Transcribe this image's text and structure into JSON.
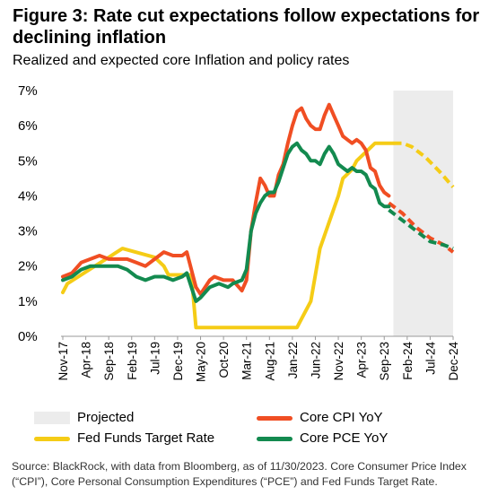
{
  "title": "Figure 3: Rate cut expectations follow expectations for declining inflation",
  "subtitle": "Realized and expected core Inflation and policy rates",
  "source": "Source: BlackRock, with data from Bloomberg, as of 11/30/2023. Core Consumer Price Index (“CPI”), Core Personal Consumption Expenditures (“PCE”) and Fed Funds Target Rate.",
  "legend": {
    "projected": "Projected",
    "fed_funds": "Fed Funds Target Rate",
    "core_cpi": "Core CPI YoY",
    "core_pce": "Core PCE YoY"
  },
  "colors": {
    "cpi": "#f04e23",
    "pce": "#138a4f",
    "fed": "#f5cc16",
    "projected": "#ececec"
  },
  "chart_data": {
    "type": "line",
    "title": "Figure 3: Rate cut expectations follow expectations for declining inflation",
    "subtitle": "Realized and expected core Inflation and policy rates",
    "xlabel": "",
    "ylabel": "",
    "ylim": [
      0,
      7
    ],
    "yticks": [
      "0%",
      "1%",
      "2%",
      "3%",
      "4%",
      "5%",
      "6%",
      "7%"
    ],
    "x_range": [
      "2017-11",
      "2024-12"
    ],
    "x_ticks": [
      "Nov-17",
      "Apr-18",
      "Sep-18",
      "Feb-19",
      "Jul-19",
      "Dec-19",
      "May-20",
      "Oct-20",
      "Mar-21",
      "Aug-21",
      "Jan-22",
      "Jun-22",
      "Nov-22",
      "Apr-23",
      "Sep-23",
      "Feb-24",
      "Jul-24",
      "Dec-24"
    ],
    "projected_region": [
      "2023-11",
      "2024-12"
    ],
    "grid": false,
    "legend_position": "bottom",
    "series": [
      {
        "name": "Core CPI YoY",
        "color": "#f04e23",
        "points": [
          [
            "2017-11",
            1.7
          ],
          [
            "2018-01",
            1.8
          ],
          [
            "2018-03",
            2.1
          ],
          [
            "2018-05",
            2.2
          ],
          [
            "2018-07",
            2.3
          ],
          [
            "2018-09",
            2.2
          ],
          [
            "2018-11",
            2.2
          ],
          [
            "2019-01",
            2.2
          ],
          [
            "2019-03",
            2.1
          ],
          [
            "2019-05",
            2.0
          ],
          [
            "2019-07",
            2.2
          ],
          [
            "2019-09",
            2.4
          ],
          [
            "2019-11",
            2.3
          ],
          [
            "2020-01",
            2.3
          ],
          [
            "2020-02",
            2.4
          ],
          [
            "2020-04",
            1.4
          ],
          [
            "2020-05",
            1.2
          ],
          [
            "2020-07",
            1.6
          ],
          [
            "2020-08",
            1.7
          ],
          [
            "2020-10",
            1.6
          ],
          [
            "2020-12",
            1.6
          ],
          [
            "2021-02",
            1.3
          ],
          [
            "2021-03",
            1.6
          ],
          [
            "2021-04",
            3.0
          ],
          [
            "2021-05",
            3.8
          ],
          [
            "2021-06",
            4.5
          ],
          [
            "2021-07",
            4.3
          ],
          [
            "2021-08",
            4.0
          ],
          [
            "2021-09",
            4.0
          ],
          [
            "2021-10",
            4.6
          ],
          [
            "2021-11",
            4.9
          ],
          [
            "2021-12",
            5.5
          ],
          [
            "2022-01",
            6.0
          ],
          [
            "2022-02",
            6.4
          ],
          [
            "2022-03",
            6.5
          ],
          [
            "2022-04",
            6.2
          ],
          [
            "2022-05",
            6.0
          ],
          [
            "2022-06",
            5.9
          ],
          [
            "2022-07",
            5.9
          ],
          [
            "2022-08",
            6.3
          ],
          [
            "2022-09",
            6.6
          ],
          [
            "2022-10",
            6.3
          ],
          [
            "2022-11",
            6.0
          ],
          [
            "2022-12",
            5.7
          ],
          [
            "2023-01",
            5.6
          ],
          [
            "2023-02",
            5.5
          ],
          [
            "2023-03",
            5.6
          ],
          [
            "2023-04",
            5.5
          ],
          [
            "2023-05",
            5.3
          ],
          [
            "2023-06",
            4.8
          ],
          [
            "2023-07",
            4.7
          ],
          [
            "2023-08",
            4.3
          ],
          [
            "2023-09",
            4.1
          ],
          [
            "2023-10",
            4.0
          ]
        ]
      },
      {
        "name": "Core CPI YoY (projected)",
        "color": "#f04e23",
        "dashed": true,
        "points": [
          [
            "2023-10",
            3.8
          ],
          [
            "2024-01",
            3.5
          ],
          [
            "2024-04",
            3.1
          ],
          [
            "2024-07",
            2.8
          ],
          [
            "2024-10",
            2.6
          ],
          [
            "2024-12",
            2.4
          ]
        ]
      },
      {
        "name": "Core PCE YoY",
        "color": "#138a4f",
        "points": [
          [
            "2017-11",
            1.6
          ],
          [
            "2018-01",
            1.7
          ],
          [
            "2018-03",
            1.9
          ],
          [
            "2018-05",
            2.0
          ],
          [
            "2018-07",
            2.0
          ],
          [
            "2018-09",
            2.0
          ],
          [
            "2018-11",
            2.0
          ],
          [
            "2019-01",
            1.9
          ],
          [
            "2019-03",
            1.7
          ],
          [
            "2019-05",
            1.6
          ],
          [
            "2019-07",
            1.7
          ],
          [
            "2019-09",
            1.7
          ],
          [
            "2019-11",
            1.6
          ],
          [
            "2020-01",
            1.7
          ],
          [
            "2020-02",
            1.8
          ],
          [
            "2020-04",
            1.0
          ],
          [
            "2020-05",
            1.1
          ],
          [
            "2020-07",
            1.4
          ],
          [
            "2020-09",
            1.5
          ],
          [
            "2020-11",
            1.4
          ],
          [
            "2020-12",
            1.5
          ],
          [
            "2021-02",
            1.6
          ],
          [
            "2021-03",
            1.9
          ],
          [
            "2021-04",
            3.0
          ],
          [
            "2021-05",
            3.5
          ],
          [
            "2021-06",
            3.8
          ],
          [
            "2021-07",
            4.0
          ],
          [
            "2021-08",
            4.1
          ],
          [
            "2021-09",
            4.1
          ],
          [
            "2021-10",
            4.4
          ],
          [
            "2021-11",
            4.8
          ],
          [
            "2021-12",
            5.2
          ],
          [
            "2022-01",
            5.4
          ],
          [
            "2022-02",
            5.5
          ],
          [
            "2022-03",
            5.3
          ],
          [
            "2022-04",
            5.2
          ],
          [
            "2022-05",
            5.0
          ],
          [
            "2022-06",
            5.0
          ],
          [
            "2022-07",
            4.9
          ],
          [
            "2022-08",
            5.2
          ],
          [
            "2022-09",
            5.4
          ],
          [
            "2022-10",
            5.2
          ],
          [
            "2022-11",
            4.9
          ],
          [
            "2022-12",
            4.8
          ],
          [
            "2023-01",
            4.7
          ],
          [
            "2023-02",
            4.8
          ],
          [
            "2023-03",
            4.7
          ],
          [
            "2023-04",
            4.7
          ],
          [
            "2023-05",
            4.6
          ],
          [
            "2023-06",
            4.3
          ],
          [
            "2023-07",
            4.2
          ],
          [
            "2023-08",
            3.8
          ],
          [
            "2023-09",
            3.7
          ],
          [
            "2023-10",
            3.7
          ]
        ]
      },
      {
        "name": "Core PCE YoY (projected)",
        "color": "#138a4f",
        "dashed": true,
        "points": [
          [
            "2023-10",
            3.6
          ],
          [
            "2024-01",
            3.3
          ],
          [
            "2024-04",
            3.0
          ],
          [
            "2024-07",
            2.7
          ],
          [
            "2024-10",
            2.6
          ],
          [
            "2024-12",
            2.5
          ]
        ]
      },
      {
        "name": "Fed Funds Target Rate",
        "color": "#f5cc16",
        "points": [
          [
            "2017-11",
            1.25
          ],
          [
            "2017-12",
            1.5
          ],
          [
            "2018-03",
            1.75
          ],
          [
            "2018-06",
            2.0
          ],
          [
            "2018-09",
            2.25
          ],
          [
            "2018-12",
            2.5
          ],
          [
            "2019-07",
            2.25
          ],
          [
            "2019-09",
            2.0
          ],
          [
            "2019-10",
            1.75
          ],
          [
            "2020-03",
            1.75
          ],
          [
            "2020-04",
            0.25
          ],
          [
            "2022-02",
            0.25
          ],
          [
            "2022-03",
            0.5
          ],
          [
            "2022-05",
            1.0
          ],
          [
            "2022-06",
            1.75
          ],
          [
            "2022-07",
            2.5
          ],
          [
            "2022-09",
            3.25
          ],
          [
            "2022-11",
            4.0
          ],
          [
            "2022-12",
            4.5
          ],
          [
            "2023-02",
            4.75
          ],
          [
            "2023-03",
            5.0
          ],
          [
            "2023-05",
            5.25
          ],
          [
            "2023-07",
            5.5
          ],
          [
            "2023-11",
            5.5
          ]
        ]
      },
      {
        "name": "Fed Funds Target Rate (projected)",
        "color": "#f5cc16",
        "dashed": true,
        "points": [
          [
            "2023-11",
            5.5
          ],
          [
            "2024-01",
            5.5
          ],
          [
            "2024-03",
            5.4
          ],
          [
            "2024-06",
            5.1
          ],
          [
            "2024-09",
            4.7
          ],
          [
            "2024-12",
            4.25
          ]
        ]
      }
    ]
  }
}
